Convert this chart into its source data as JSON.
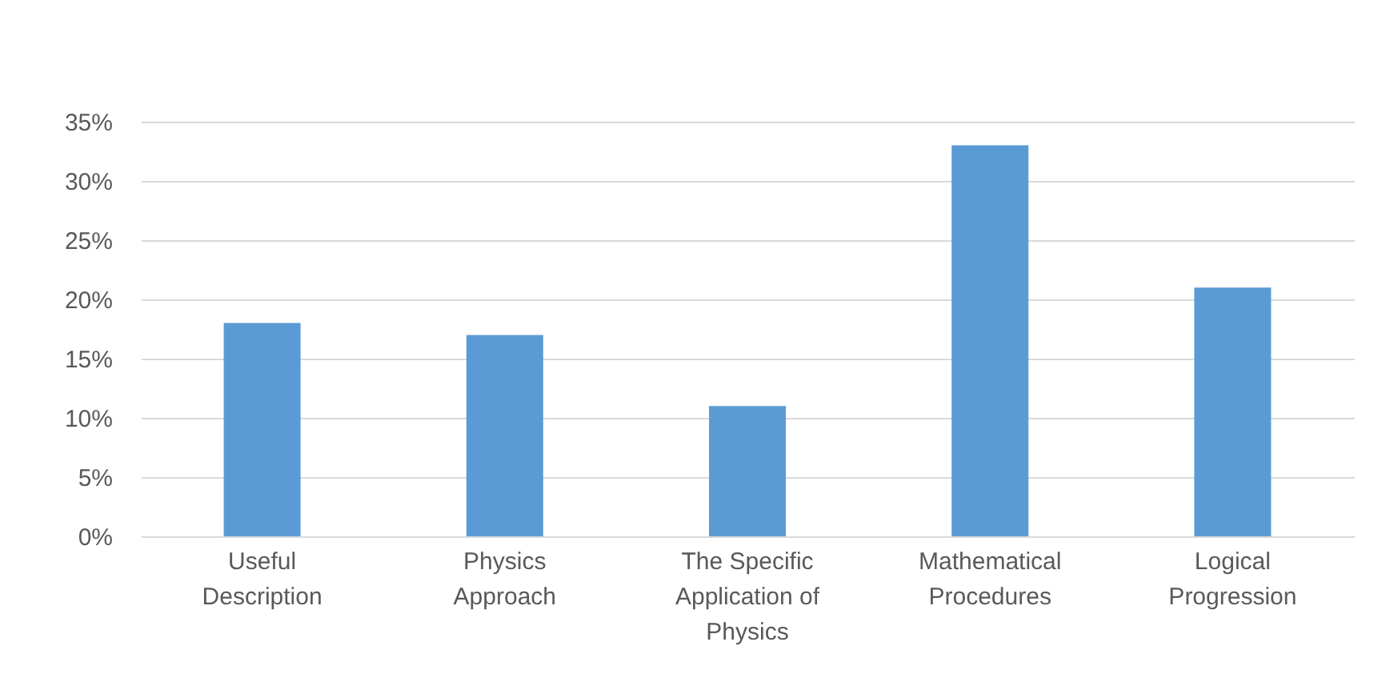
{
  "chart_data": {
    "type": "bar",
    "categories": [
      "Useful Description",
      "Physics Approach",
      "The Specific Application of Physics",
      "Mathematical Procedures",
      "Logical Progression"
    ],
    "values": [
      18,
      17,
      11,
      33,
      21
    ],
    "color": "#5b9bd5",
    "ylim": [
      0,
      35
    ],
    "yticks": [
      {
        "value": 0,
        "label": "0%"
      },
      {
        "value": 5,
        "label": "5%"
      },
      {
        "value": 10,
        "label": "10%"
      },
      {
        "value": 15,
        "label": "15%"
      },
      {
        "value": 20,
        "label": "20%"
      },
      {
        "value": 25,
        "label": "25%"
      },
      {
        "value": 30,
        "label": "30%"
      },
      {
        "value": 35,
        "label": "35%"
      }
    ],
    "grid": "y"
  }
}
